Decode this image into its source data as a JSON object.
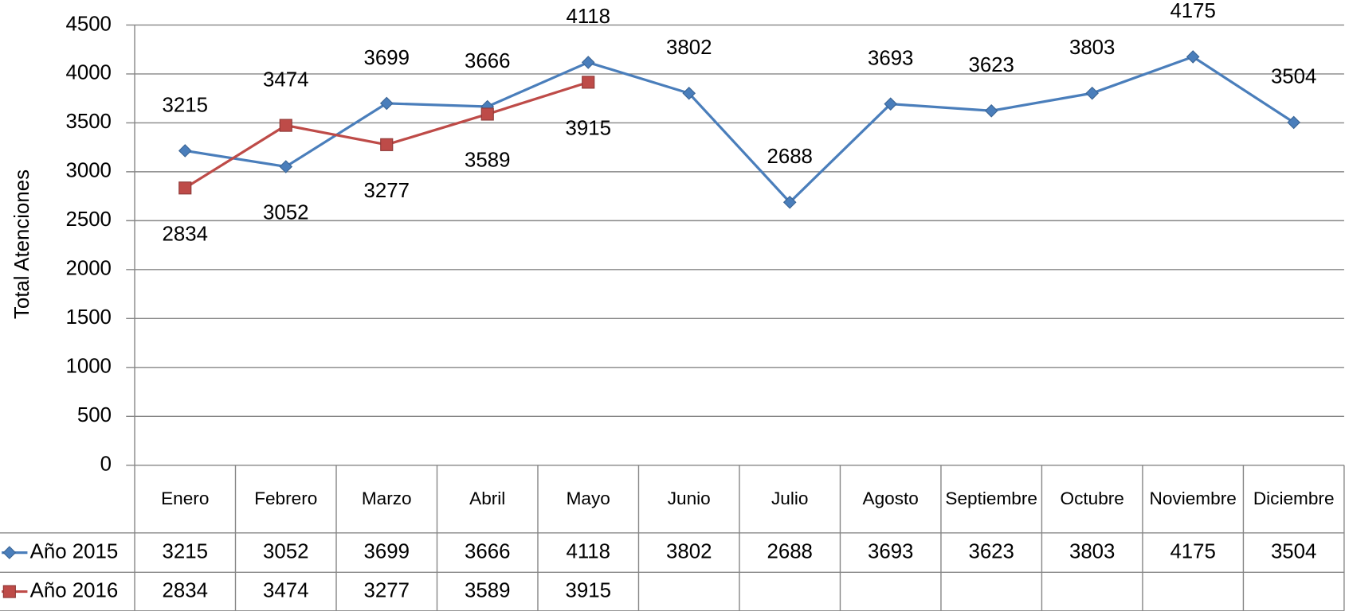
{
  "chart_data": {
    "type": "line",
    "y_label": "Total Atenciones",
    "categories": [
      "Enero",
      "Febrero",
      "Marzo",
      "Abril",
      "Mayo",
      "Junio",
      "Julio",
      "Agosto",
      "Septiembre",
      "Octubre",
      "Noviembre",
      "Diciembre"
    ],
    "series": [
      {
        "name": "Año 2015",
        "color": "#4a7ebb",
        "marker": "diamond",
        "values": [
          3215,
          3052,
          3699,
          3666,
          4118,
          3802,
          2688,
          3693,
          3623,
          3803,
          4175,
          3504
        ]
      },
      {
        "name": "Año 2016",
        "color": "#be4b48",
        "marker": "square",
        "values": [
          2834,
          3474,
          3277,
          3589,
          3915,
          null,
          null,
          null,
          null,
          null,
          null,
          null
        ]
      }
    ],
    "ylim": [
      0,
      4500
    ],
    "yticks": [
      0,
      500,
      1000,
      1500,
      2000,
      2500,
      3000,
      3500,
      4000,
      4500
    ],
    "grid": true,
    "data_table": true
  }
}
